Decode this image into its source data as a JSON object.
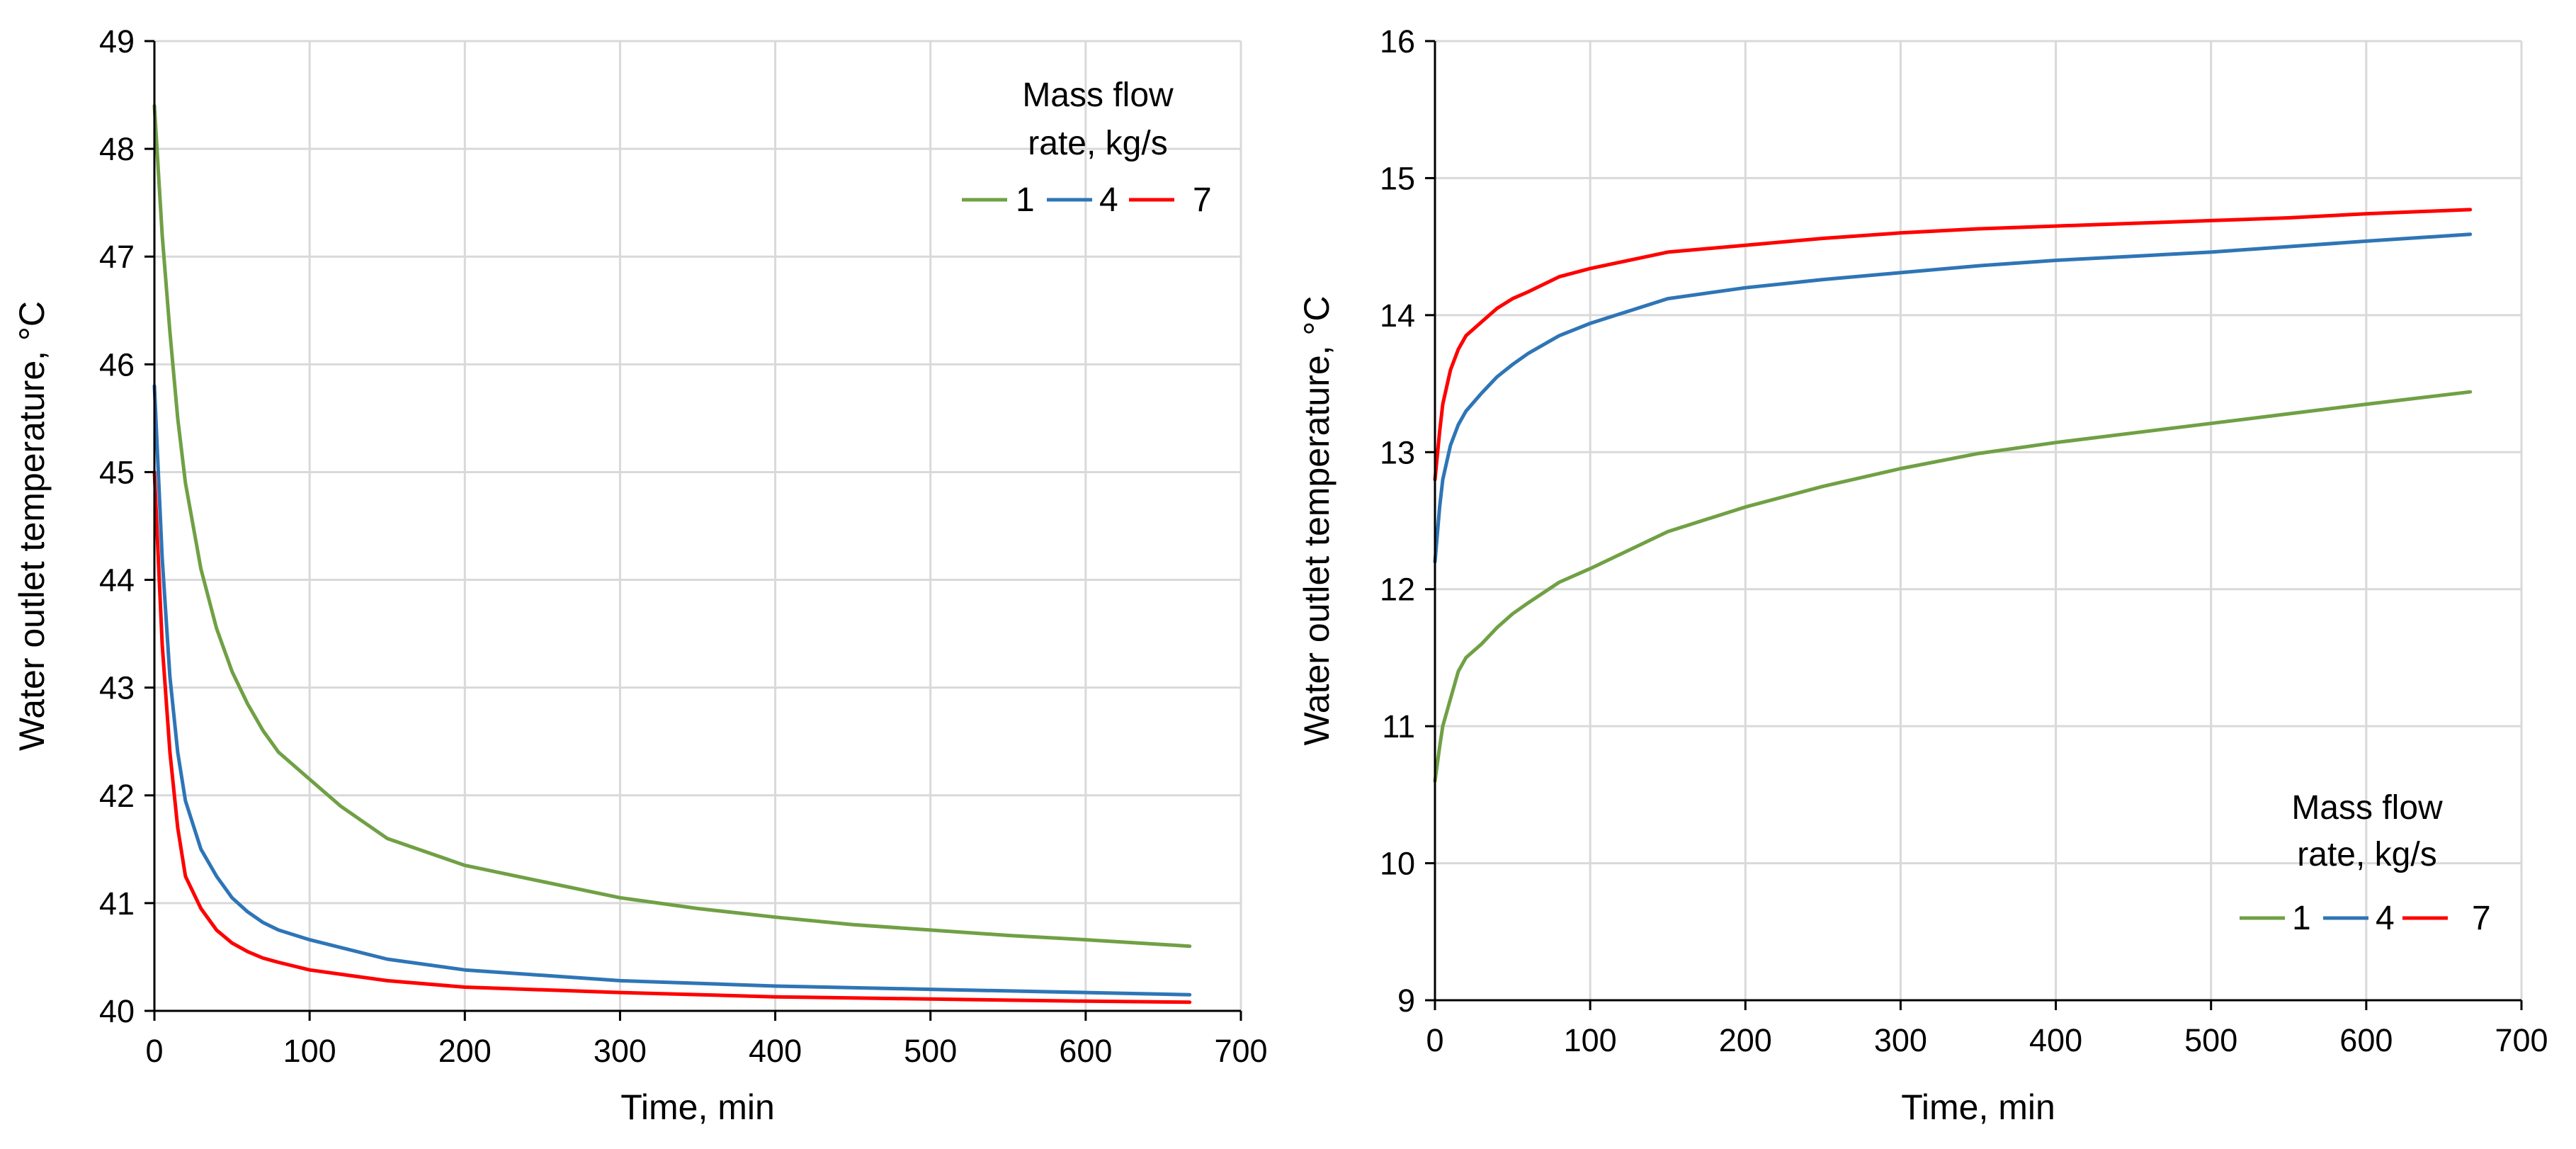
{
  "chart_data": [
    {
      "type": "line",
      "title": "",
      "xlabel": "Time, min",
      "ylabel": "Water outlet temperature, °C",
      "xlim": [
        0,
        700
      ],
      "ylim": [
        40,
        49
      ],
      "xticks": [
        0,
        100,
        200,
        300,
        400,
        500,
        600,
        700
      ],
      "yticks": [
        40,
        41,
        42,
        43,
        44,
        45,
        46,
        47,
        48,
        49
      ],
      "grid": true,
      "legend": {
        "title_line1": "Mass flow",
        "title_line2": "rate, kg/s",
        "position": "top-right"
      },
      "series": [
        {
          "name": "1",
          "color": "#70a044",
          "x": [
            0,
            5,
            10,
            15,
            20,
            30,
            40,
            50,
            60,
            70,
            80,
            100,
            120,
            150,
            200,
            250,
            300,
            350,
            400,
            450,
            500,
            550,
            600,
            667
          ],
          "y": [
            48.4,
            47.2,
            46.3,
            45.5,
            44.9,
            44.1,
            43.55,
            43.15,
            42.85,
            42.6,
            42.4,
            42.15,
            41.9,
            41.6,
            41.35,
            41.2,
            41.05,
            40.95,
            40.87,
            40.8,
            40.75,
            40.7,
            40.66,
            40.6
          ]
        },
        {
          "name": "4",
          "color": "#2e75b6",
          "x": [
            0,
            5,
            10,
            15,
            20,
            30,
            40,
            50,
            60,
            70,
            80,
            100,
            150,
            200,
            300,
            400,
            500,
            600,
            667
          ],
          "y": [
            45.8,
            44.2,
            43.1,
            42.4,
            41.95,
            41.5,
            41.25,
            41.05,
            40.92,
            40.82,
            40.75,
            40.66,
            40.48,
            40.38,
            40.28,
            40.23,
            40.2,
            40.17,
            40.15
          ]
        },
        {
          "name": "7",
          "color": "#ff0000",
          "x": [
            0,
            5,
            10,
            15,
            20,
            30,
            40,
            50,
            60,
            70,
            80,
            100,
            150,
            200,
            300,
            400,
            500,
            600,
            667
          ],
          "y": [
            45.0,
            43.4,
            42.4,
            41.7,
            41.25,
            40.95,
            40.75,
            40.63,
            40.55,
            40.49,
            40.45,
            40.38,
            40.28,
            40.22,
            40.17,
            40.13,
            40.11,
            40.09,
            40.08
          ]
        }
      ]
    },
    {
      "type": "line",
      "title": "",
      "xlabel": "Time, min",
      "ylabel": "Water outlet temperature, °C",
      "xlim": [
        0,
        700
      ],
      "ylim": [
        9,
        16
      ],
      "xticks": [
        0,
        100,
        200,
        300,
        400,
        500,
        600,
        700
      ],
      "yticks": [
        9,
        10,
        11,
        12,
        13,
        14,
        15,
        16
      ],
      "grid": true,
      "legend": {
        "title_line1": "Mass flow",
        "title_line2": "rate, kg/s",
        "position": "bottom-right"
      },
      "series": [
        {
          "name": "1",
          "color": "#70a044",
          "x": [
            0,
            3,
            5,
            10,
            15,
            20,
            30,
            40,
            50,
            60,
            80,
            100,
            150,
            200,
            250,
            300,
            350,
            400,
            450,
            500,
            550,
            600,
            667
          ],
          "y": [
            10.6,
            10.85,
            11.0,
            11.2,
            11.4,
            11.5,
            11.6,
            11.72,
            11.82,
            11.9,
            12.05,
            12.15,
            12.42,
            12.6,
            12.75,
            12.88,
            12.99,
            13.07,
            13.14,
            13.21,
            13.28,
            13.35,
            13.44
          ]
        },
        {
          "name": "4",
          "color": "#2e75b6",
          "x": [
            0,
            3,
            5,
            10,
            15,
            20,
            30,
            40,
            50,
            60,
            80,
            100,
            150,
            200,
            250,
            300,
            350,
            400,
            450,
            500,
            550,
            600,
            667
          ],
          "y": [
            12.2,
            12.6,
            12.8,
            13.05,
            13.2,
            13.3,
            13.43,
            13.55,
            13.64,
            13.72,
            13.85,
            13.94,
            14.12,
            14.2,
            14.26,
            14.31,
            14.36,
            14.4,
            14.43,
            14.46,
            14.5,
            14.54,
            14.59
          ]
        },
        {
          "name": "7",
          "color": "#ff0000",
          "x": [
            0,
            3,
            5,
            10,
            15,
            20,
            30,
            40,
            50,
            60,
            80,
            100,
            150,
            200,
            250,
            300,
            350,
            400,
            450,
            500,
            550,
            600,
            667
          ],
          "y": [
            12.8,
            13.15,
            13.35,
            13.6,
            13.75,
            13.85,
            13.95,
            14.05,
            14.12,
            14.17,
            14.28,
            14.34,
            14.46,
            14.51,
            14.56,
            14.6,
            14.63,
            14.65,
            14.67,
            14.69,
            14.71,
            14.74,
            14.77
          ]
        }
      ]
    }
  ]
}
